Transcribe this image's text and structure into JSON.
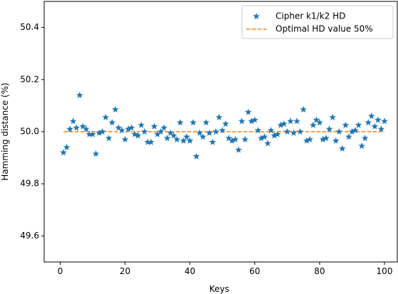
{
  "chart_data": {
    "type": "scatter",
    "title": "",
    "xlabel": "Keys",
    "ylabel": "Hamming distance (%)",
    "xlim": [
      -4.95,
      103.95
    ],
    "ylim": [
      49.5,
      50.5
    ],
    "xticks": [
      0,
      20,
      40,
      60,
      80,
      100
    ],
    "yticks": [
      49.6,
      49.8,
      50.0,
      50.2,
      50.4
    ],
    "xtick_labels": [
      "0",
      "20",
      "40",
      "60",
      "80",
      "100"
    ],
    "ytick_labels": [
      "49.6",
      "49.8",
      "50.0",
      "50.2",
      "50.4"
    ],
    "grid": false,
    "legend_position": "top-right",
    "series": [
      {
        "name": "Cipher k1/k2 HD",
        "kind": "scatter",
        "marker": "star",
        "color": "#1f77b4",
        "x": [
          1,
          2,
          3,
          4,
          5,
          6,
          7,
          8,
          9,
          10,
          11,
          12,
          13,
          14,
          15,
          16,
          17,
          18,
          19,
          20,
          21,
          22,
          23,
          24,
          25,
          26,
          27,
          28,
          29,
          30,
          31,
          32,
          33,
          34,
          35,
          36,
          37,
          38,
          39,
          40,
          41,
          42,
          43,
          44,
          45,
          46,
          47,
          48,
          49,
          50,
          51,
          52,
          53,
          54,
          55,
          56,
          57,
          58,
          59,
          60,
          61,
          62,
          63,
          64,
          65,
          66,
          67,
          68,
          69,
          70,
          71,
          72,
          73,
          74,
          75,
          76,
          77,
          78,
          79,
          80,
          81,
          82,
          83,
          84,
          85,
          86,
          87,
          88,
          89,
          90,
          91,
          92,
          93,
          94,
          95,
          96,
          97,
          98,
          99,
          100
        ],
        "y": [
          49.92,
          49.94,
          50.01,
          50.04,
          50.015,
          50.14,
          50.02,
          50.01,
          49.99,
          49.99,
          49.915,
          49.995,
          50.0,
          50.055,
          49.975,
          50.035,
          50.085,
          50.015,
          50.005,
          49.97,
          50.01,
          50.015,
          49.99,
          49.985,
          50.025,
          50.0,
          49.96,
          49.96,
          50.02,
          49.99,
          50.0,
          50.015,
          49.975,
          49.995,
          49.985,
          49.97,
          50.035,
          49.965,
          49.98,
          49.965,
          50.035,
          49.905,
          49.995,
          49.98,
          50.035,
          49.995,
          49.96,
          50.0,
          50.055,
          50.005,
          50.03,
          49.975,
          49.965,
          49.97,
          49.93,
          50.04,
          49.97,
          50.075,
          50.04,
          50.045,
          50.005,
          49.975,
          49.98,
          49.955,
          50.005,
          49.985,
          49.99,
          50.025,
          50.03,
          50.0,
          50.04,
          49.995,
          50.04,
          50.0,
          50.085,
          49.965,
          49.97,
          50.025,
          50.045,
          50.035,
          49.97,
          49.975,
          50.01,
          50.055,
          49.965,
          50.0,
          49.935,
          50.025,
          49.98,
          50.0,
          50.005,
          50.025,
          49.945,
          49.975,
          50.035,
          50.06,
          50.02,
          50.045,
          50.01,
          50.04
        ]
      },
      {
        "name": "Optimal HD value 50%",
        "kind": "line",
        "style": "dashed",
        "color": "#ff7f0e",
        "x": [
          1,
          100
        ],
        "y": [
          50.0,
          50.0
        ]
      }
    ]
  }
}
